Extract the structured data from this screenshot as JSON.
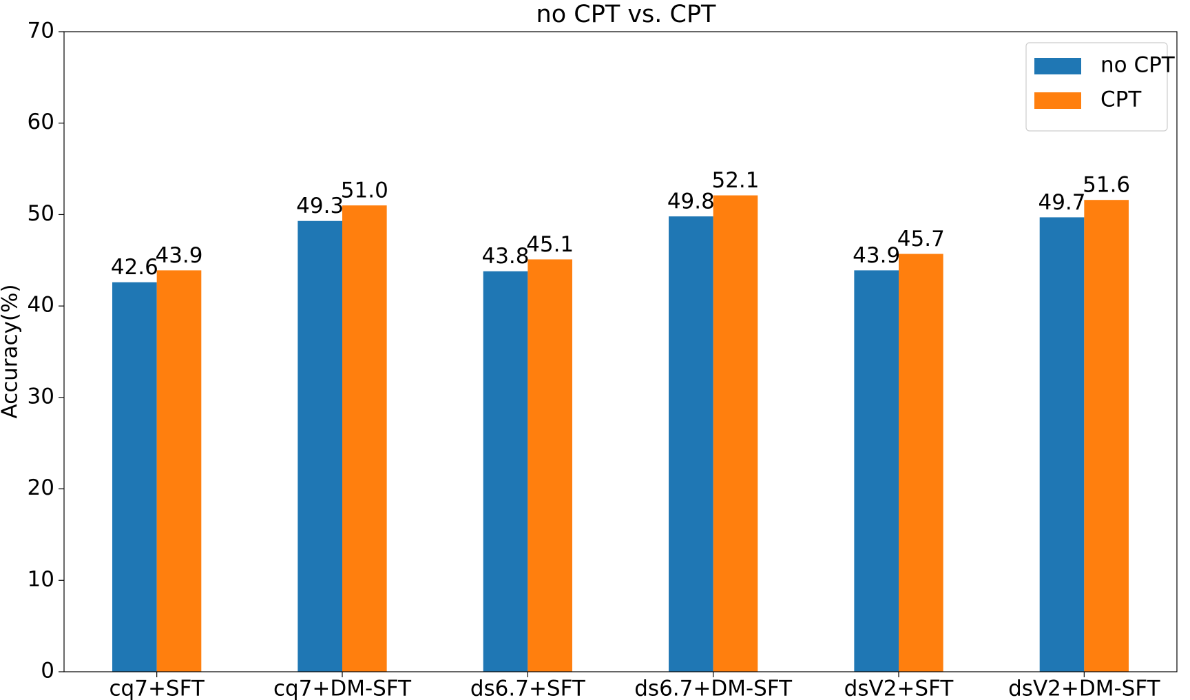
{
  "chart_data": {
    "type": "bar",
    "title": "no CPT vs. CPT",
    "y_label": "Accuracy(%)",
    "categories": [
      "cq7+SFT",
      "cq7+DM-SFT",
      "ds6.7+SFT",
      "ds6.7+DM-SFT",
      "dsV2+SFT",
      "dsV2+DM-SFT"
    ],
    "series": [
      {
        "name": "no CPT",
        "color": "#1f77b4",
        "values": [
          42.6,
          49.3,
          43.8,
          49.8,
          43.9,
          49.7
        ],
        "value_labels": [
          "42.6",
          "49.3",
          "43.8",
          "49.8",
          "43.9",
          "49.7"
        ]
      },
      {
        "name": "CPT",
        "color": "#ff7f0e",
        "values": [
          43.9,
          51,
          45.1,
          52.1,
          45.7,
          51.6
        ],
        "value_labels": [
          "43.9",
          "51.0",
          "45.1",
          "52.1",
          "45.7",
          "51.6"
        ]
      }
    ],
    "ylim": [
      0,
      70
    ],
    "yticks": [
      0,
      10,
      20,
      30,
      40,
      50,
      60,
      70
    ],
    "grid": false,
    "legend": "upper right"
  }
}
